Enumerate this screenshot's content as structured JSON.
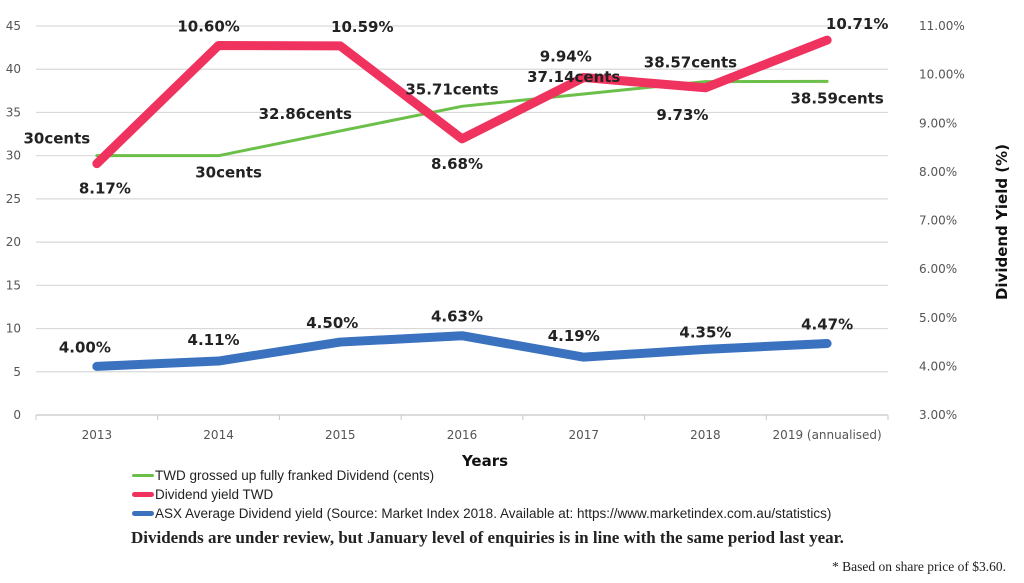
{
  "chart_data": {
    "type": "line",
    "title": "",
    "xlabel": "Years",
    "ylabel": "",
    "y2label": "Dividend Yield (%)",
    "categories": [
      "2013",
      "2014",
      "2015",
      "2016",
      "2017",
      "2018",
      "2019 (annualised)"
    ],
    "ylim": [
      0,
      45
    ],
    "yticks": [
      "0",
      "5",
      "10",
      "15",
      "20",
      "25",
      "30",
      "35",
      "40",
      "45"
    ],
    "y2lim": [
      3,
      11
    ],
    "y2ticks": [
      "3.00%",
      "4.00%",
      "5.00%",
      "6.00%",
      "7.00%",
      "8.00%",
      "9.00%",
      "10.00%",
      "11.00%"
    ],
    "grid": true,
    "legend_position": "bottom-left",
    "series": [
      {
        "name": "TWD grossed up fully franked Dividend (cents)",
        "axis": "left",
        "color": "#6cc04a",
        "values": [
          30,
          30,
          32.86,
          35.71,
          37.14,
          38.57,
          38.59
        ],
        "labels": [
          "30cents",
          "30cents",
          "32.86cents",
          "35.71cents",
          "37.14cents",
          "38.57cents",
          "38.59cents"
        ]
      },
      {
        "name": "Dividend yield TWD",
        "axis": "right",
        "color": "#f0325e",
        "values": [
          8.17,
          10.6,
          10.59,
          8.68,
          9.94,
          9.73,
          10.71
        ],
        "labels": [
          "8.17%",
          "10.60%",
          "10.59%",
          "8.68%",
          "9.94%",
          "9.73%",
          "10.71%"
        ]
      },
      {
        "name": "ASX Average Dividend yield (Source: Market Index 2018. Available at: https://www.marketindex.com.au/statistics)",
        "axis": "right",
        "color": "#3a72c0",
        "values": [
          4.0,
          4.11,
          4.5,
          4.63,
          4.19,
          4.35,
          4.47
        ],
        "labels": [
          "4.00%",
          "4.11%",
          "4.50%",
          "4.63%",
          "4.19%",
          "4.35%",
          "4.47%"
        ]
      }
    ]
  },
  "caption": "Dividends are under review, but January level of enquiries is in line with the same period last year.",
  "footnote": "* Based on share price of $3.60."
}
